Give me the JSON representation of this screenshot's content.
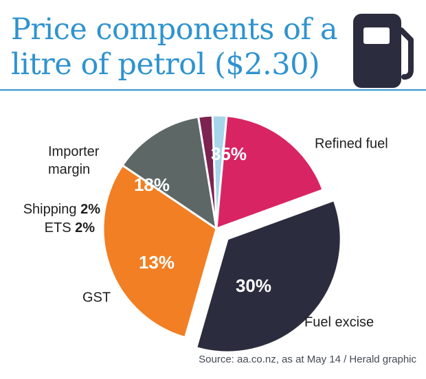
{
  "title": "Price components of a litre of petrol ($2.30)",
  "source": "Source: aa.co.nz, as at May 14 / Herald graphic",
  "colors": {
    "title": "#2f93cf",
    "rule": "#2f93cf",
    "icon": "#2b2d3e"
  },
  "chart_data": {
    "type": "pie",
    "title": "Price components of a litre of petrol ($2.30)",
    "slices": [
      {
        "label": "Refined fuel",
        "pct_label": "35%",
        "value": 35,
        "color": "#2b2d3e",
        "exploded": true
      },
      {
        "label": "Fuel excise",
        "pct_label": "30%",
        "value": 30,
        "color": "#f27f23",
        "exploded": false
      },
      {
        "label": "GST",
        "pct_label": "13%",
        "value": 13,
        "color": "#5d6766",
        "exploded": false
      },
      {
        "label": "ETS",
        "pct_label": "2%",
        "value": 2,
        "color": "#7c2351",
        "exploded": false
      },
      {
        "label": "Shipping",
        "pct_label": "2%",
        "value": 2,
        "color": "#a7d5ec",
        "exploded": false
      },
      {
        "label": "Importer margin",
        "pct_label": "18%",
        "value": 18,
        "color": "#d92463",
        "exploded": false
      }
    ]
  }
}
